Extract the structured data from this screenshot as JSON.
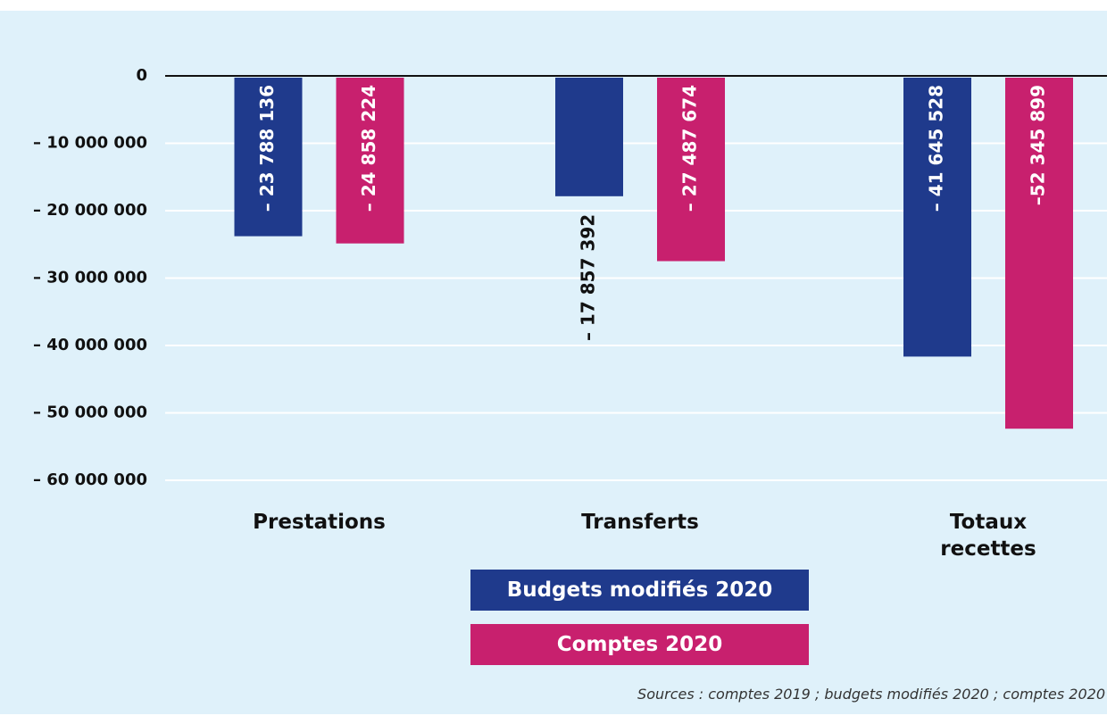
{
  "chart_data": {
    "type": "bar",
    "categories": [
      "Prestations",
      "Transferts",
      "Totaux recettes"
    ],
    "series": [
      {
        "name": "Budgets modifiés 2020",
        "color": "#1f3a8c",
        "values": [
          -23788136,
          -17857392,
          -41645528
        ],
        "value_labels": [
          "– 23 788 136",
          "– 17 857 392",
          "– 41 645 528"
        ]
      },
      {
        "name": "Comptes 2020",
        "color": "#c8206e",
        "values": [
          -24858224,
          -27487674,
          -52345899
        ],
        "value_labels": [
          "– 24 858 224",
          "– 27 487 674",
          "–52 345 899"
        ]
      }
    ],
    "ylim": [
      -60000000,
      0
    ],
    "yticks": [
      0,
      {
        "value": -10000000,
        "label": "– 10 000 000"
      },
      {
        "value": -20000000,
        "label": "– 20 000 000"
      },
      {
        "value": -30000000,
        "label": "– 30 000 000"
      },
      {
        "value": -40000000,
        "label": "– 40 000 000"
      },
      {
        "value": -50000000,
        "label": "– 50 000 000"
      },
      {
        "value": -60000000,
        "label": "– 60 000 000"
      }
    ],
    "grid": true,
    "source": "Sources : comptes 2019 ; budgets modifiés 2020 ; comptes 2020"
  }
}
